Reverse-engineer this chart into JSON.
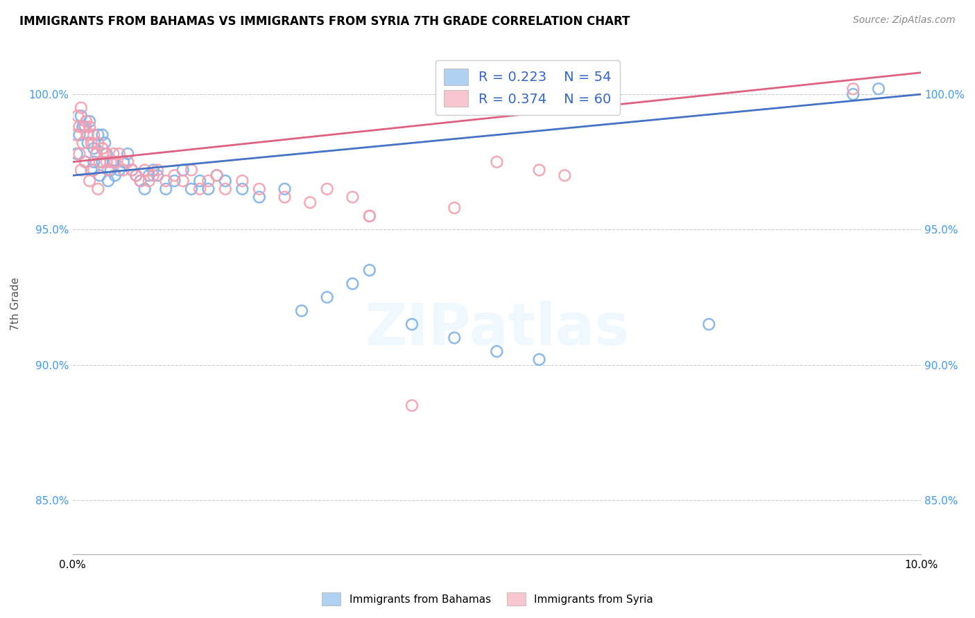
{
  "title": "IMMIGRANTS FROM BAHAMAS VS IMMIGRANTS FROM SYRIA 7TH GRADE CORRELATION CHART",
  "source": "Source: ZipAtlas.com",
  "xlabel_bottom": "Immigrants from Bahamas",
  "xlabel_right": "Immigrants from Syria",
  "ylabel": "7th Grade",
  "xlim": [
    0.0,
    10.0
  ],
  "ylim": [
    83.0,
    101.5
  ],
  "ytick_positions": [
    85.0,
    90.0,
    95.0,
    100.0
  ],
  "ytick_labels": [
    "85.0%",
    "90.0%",
    "95.0%",
    "100.0%"
  ],
  "legend_R_blue": "R = 0.223",
  "legend_N_blue": "N = 54",
  "legend_R_pink": "R = 0.374",
  "legend_N_pink": "N = 60",
  "blue_color": "#7EB3E8",
  "pink_color": "#F4A0B0",
  "blue_line_color": "#4472C4",
  "pink_line_color": "#E06080",
  "blue_scatter_x": [
    0.05,
    0.08,
    0.1,
    0.12,
    0.15,
    0.18,
    0.2,
    0.22,
    0.25,
    0.28,
    0.3,
    0.32,
    0.35,
    0.38,
    0.4,
    0.42,
    0.45,
    0.48,
    0.5,
    0.55,
    0.6,
    0.65,
    0.7,
    0.75,
    0.8,
    0.85,
    0.9,
    0.95,
    1.0,
    1.1,
    1.2,
    1.3,
    1.4,
    1.5,
    1.6,
    1.7,
    1.8,
    2.0,
    2.2,
    2.5,
    2.7,
    3.0,
    3.3,
    3.5,
    4.0,
    4.5,
    5.0,
    5.5,
    7.5,
    9.2,
    0.15,
    0.25,
    0.35,
    9.5
  ],
  "blue_scatter_y": [
    97.8,
    98.5,
    99.2,
    98.8,
    97.5,
    98.2,
    99.0,
    97.2,
    98.0,
    97.8,
    98.5,
    97.0,
    97.5,
    98.2,
    97.8,
    96.8,
    97.2,
    97.5,
    97.0,
    97.2,
    97.5,
    97.8,
    97.2,
    97.0,
    96.8,
    96.5,
    97.0,
    97.2,
    97.0,
    96.5,
    96.8,
    97.2,
    96.5,
    96.8,
    96.5,
    97.0,
    96.8,
    96.5,
    96.2,
    96.5,
    92.0,
    92.5,
    93.0,
    93.5,
    91.5,
    91.0,
    90.5,
    90.2,
    91.5,
    100.0,
    98.8,
    97.5,
    98.5,
    100.2
  ],
  "pink_scatter_x": [
    0.04,
    0.06,
    0.08,
    0.1,
    0.12,
    0.14,
    0.16,
    0.18,
    0.2,
    0.22,
    0.25,
    0.28,
    0.3,
    0.32,
    0.35,
    0.38,
    0.4,
    0.42,
    0.45,
    0.48,
    0.5,
    0.55,
    0.6,
    0.65,
    0.7,
    0.75,
    0.8,
    0.85,
    0.9,
    0.95,
    1.0,
    1.1,
    1.2,
    1.3,
    1.4,
    1.5,
    1.6,
    1.7,
    1.8,
    2.0,
    2.2,
    2.5,
    2.8,
    3.0,
    3.3,
    3.5,
    4.0,
    5.0,
    5.5,
    9.2,
    0.1,
    0.2,
    0.3,
    3.5,
    4.5,
    5.8,
    0.08,
    0.15,
    0.25,
    0.35
  ],
  "pink_scatter_y": [
    98.5,
    99.2,
    98.8,
    99.5,
    98.2,
    98.8,
    99.0,
    98.5,
    98.8,
    98.2,
    98.5,
    97.8,
    98.2,
    97.5,
    98.0,
    97.8,
    97.5,
    97.2,
    97.5,
    97.8,
    97.5,
    97.8,
    97.2,
    97.5,
    97.2,
    97.0,
    96.8,
    97.2,
    96.8,
    97.0,
    97.2,
    96.8,
    97.0,
    96.8,
    97.2,
    96.5,
    96.8,
    97.0,
    96.5,
    96.8,
    96.5,
    96.2,
    96.0,
    96.5,
    96.2,
    95.5,
    88.5,
    97.5,
    97.2,
    100.2,
    97.2,
    96.8,
    96.5,
    95.5,
    95.8,
    97.0,
    97.8,
    97.5,
    97.2,
    98.0
  ]
}
